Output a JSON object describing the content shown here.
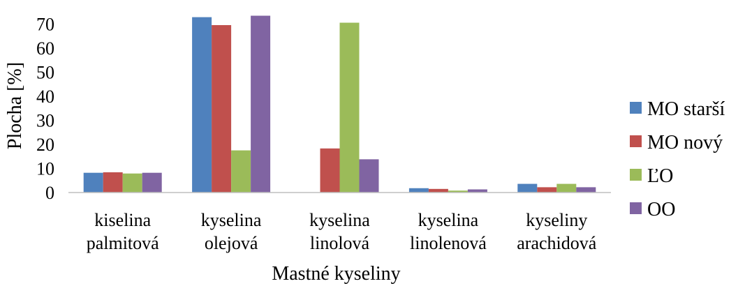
{
  "chart_data": {
    "type": "bar",
    "categories": [
      [
        "kiselina",
        "palmitová"
      ],
      [
        "kyselina",
        "olejová"
      ],
      [
        "kyselina",
        "linolová"
      ],
      [
        "kyselina",
        "linolenová"
      ],
      [
        "kyseliny",
        "arachidová"
      ]
    ],
    "series": [
      {
        "name": "MO starší",
        "color": "#4f81bd",
        "values": [
          8.2,
          72.8,
          0,
          1.8,
          3.6
        ]
      },
      {
        "name": "MO nový",
        "color": "#c0504d",
        "values": [
          8.4,
          69.5,
          18.3,
          1.5,
          2.2
        ]
      },
      {
        "name": "ĽO",
        "color": "#9bbb59",
        "values": [
          7.9,
          17.5,
          70.5,
          0.8,
          3.6
        ]
      },
      {
        "name": "OO",
        "color": "#8064a2",
        "values": [
          8.2,
          73.4,
          13.8,
          1.3,
          2.2
        ]
      }
    ],
    "xlabel": "Mastné kyseliny",
    "ylabel": "Plocha [%]",
    "ylim": [
      0,
      75
    ],
    "yticks": [
      0,
      10,
      20,
      30,
      40,
      50,
      60,
      70
    ],
    "grid": false,
    "legend_position": "right"
  }
}
